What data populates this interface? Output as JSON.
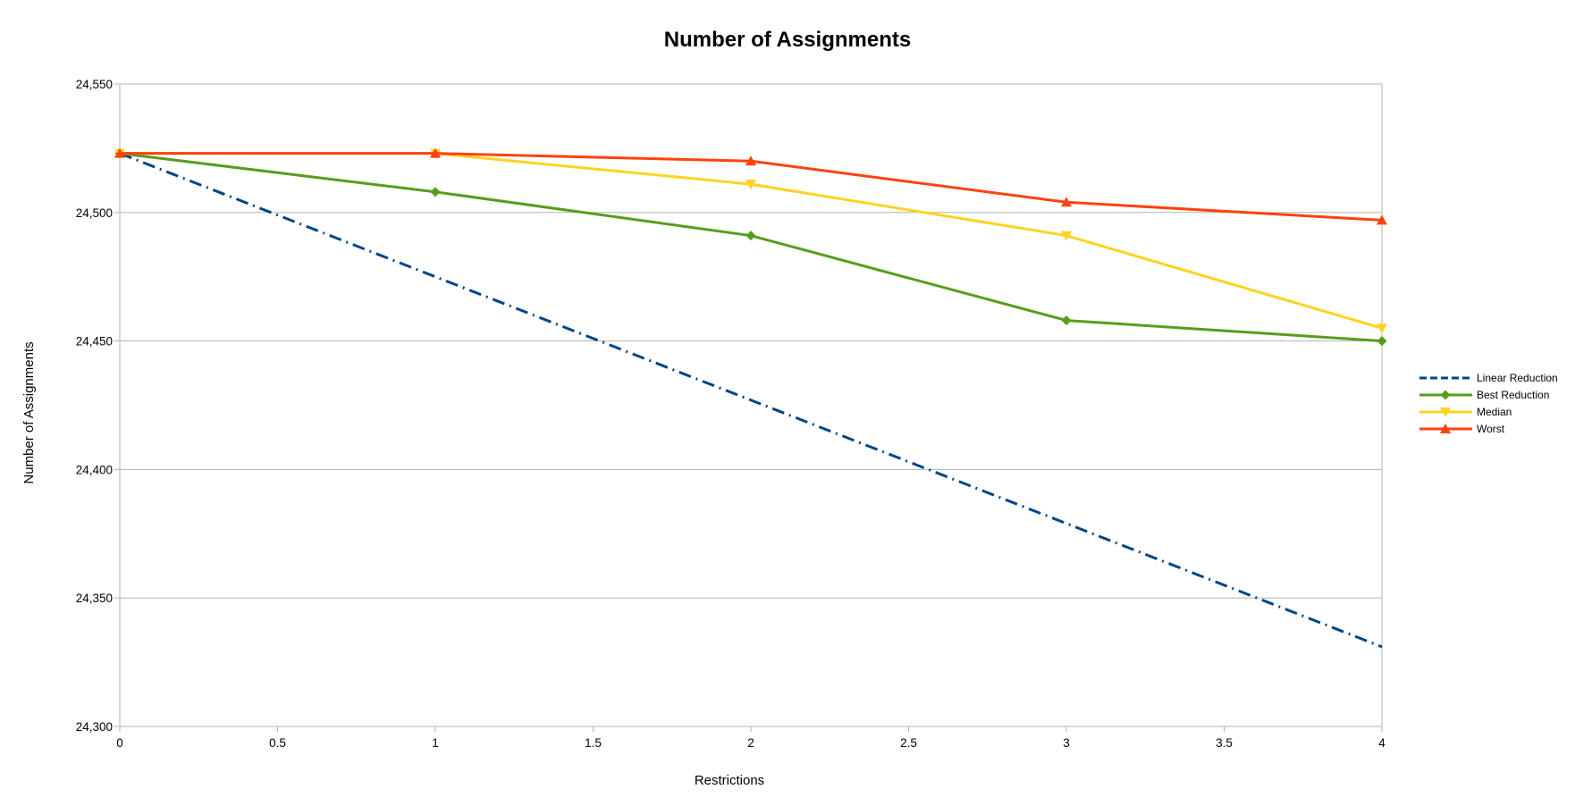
{
  "chart_data": {
    "type": "line",
    "title": "Number of Assignments",
    "xlabel": "Restrictions",
    "ylabel": "Number of Assignments",
    "xlim": [
      0,
      4
    ],
    "ylim": [
      24300,
      24550
    ],
    "x_ticks": [
      "0",
      "0.5",
      "1",
      "1.5",
      "2",
      "2.5",
      "3",
      "3.5",
      "4"
    ],
    "y_ticks": [
      "24,300",
      "24,350",
      "24,400",
      "24,450",
      "24,500",
      "24,550"
    ],
    "grid": "horizontal",
    "legend_position": "right",
    "series": [
      {
        "name": "Linear Reduction",
        "color": "#004586",
        "line_style": "dash-dot",
        "marker": "none",
        "x": [
          0,
          4
        ],
        "values": [
          24523,
          24331
        ]
      },
      {
        "name": "Best Reduction",
        "color": "#579d1c",
        "line_style": "solid",
        "marker": "diamond",
        "x": [
          0,
          1,
          2,
          3,
          4
        ],
        "values": [
          24523,
          24508,
          24491,
          24458,
          24450
        ]
      },
      {
        "name": "Median",
        "color": "#ffd320",
        "line_style": "solid",
        "marker": "triangle-down",
        "x": [
          0,
          1,
          2,
          3,
          4
        ],
        "values": [
          24523,
          24523,
          24511,
          24491,
          24455
        ]
      },
      {
        "name": "Worst",
        "color": "#ff420e",
        "line_style": "solid",
        "marker": "triangle-up",
        "x": [
          0,
          1,
          2,
          3,
          4
        ],
        "values": [
          24523,
          24523,
          24520,
          24504,
          24497
        ]
      }
    ]
  }
}
